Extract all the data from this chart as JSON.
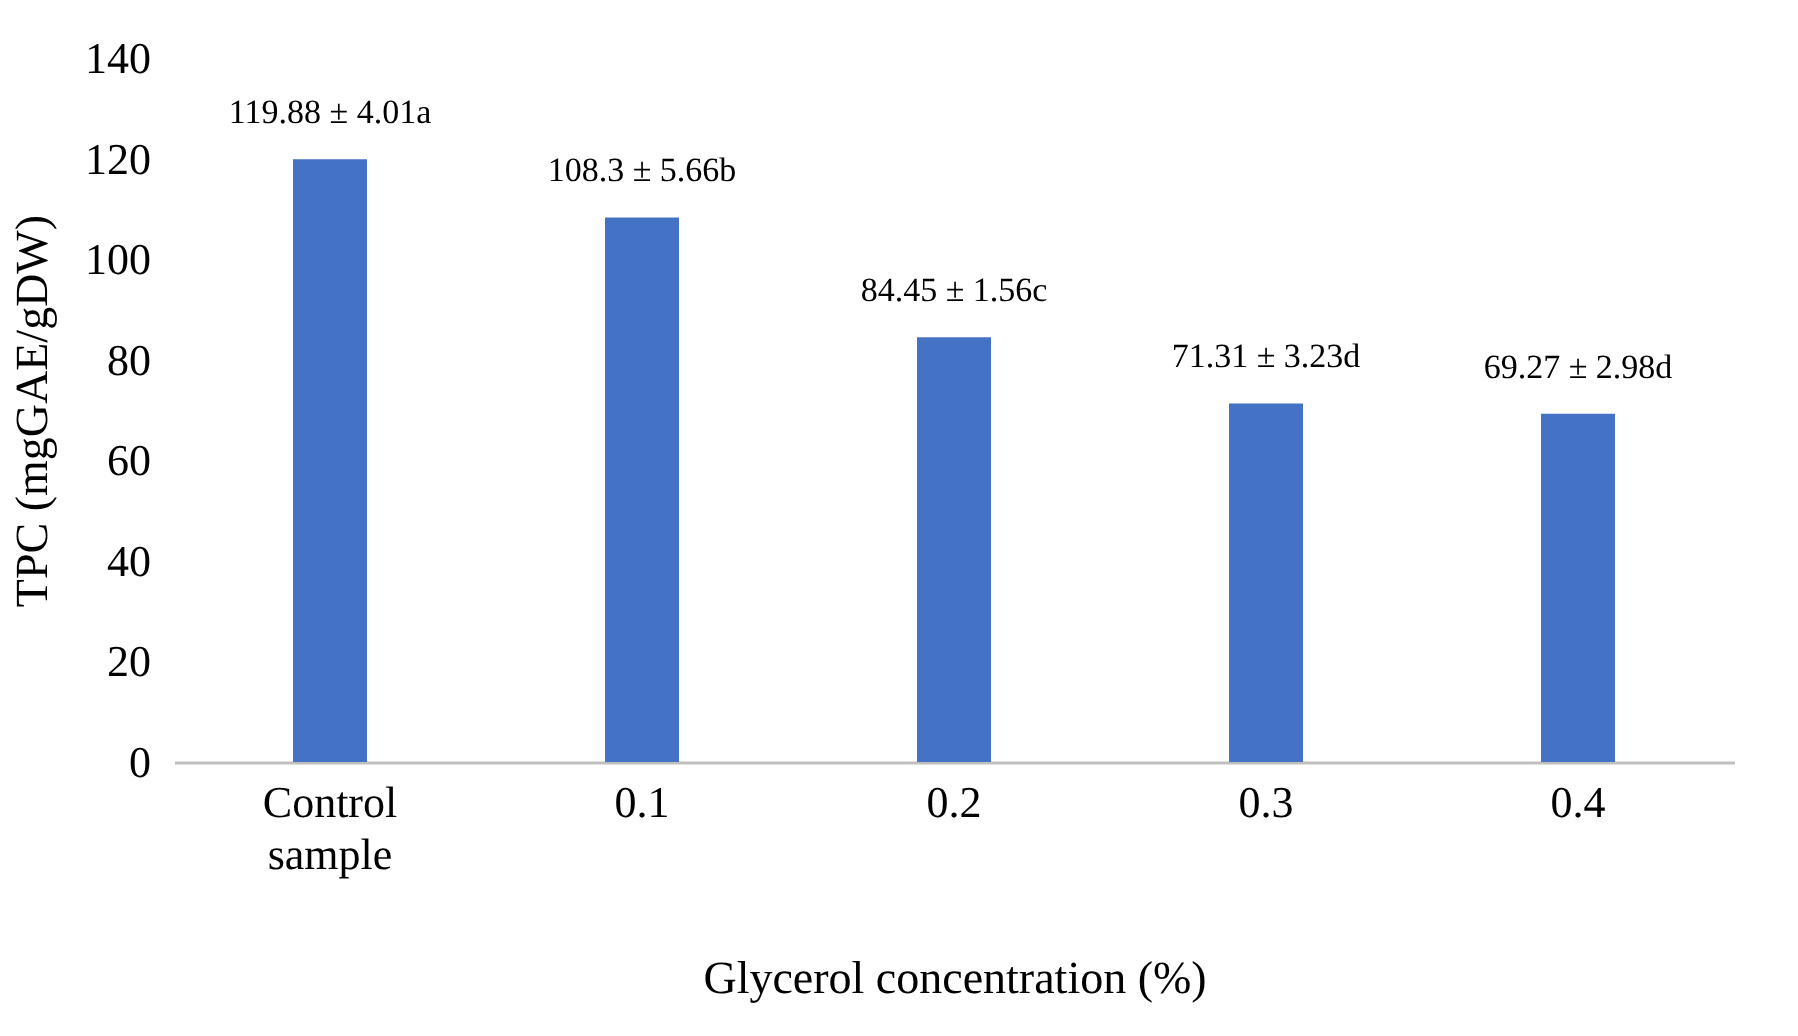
{
  "chart_data": {
    "type": "bar",
    "xlabel": "Glycerol concentration (%)",
    "ylabel": "TPC (mgGAE/gDW)",
    "categories": [
      "Control sample",
      "0.1",
      "0.2",
      "0.3",
      "0.4"
    ],
    "values": [
      119.88,
      108.3,
      84.45,
      71.31,
      69.27
    ],
    "value_labels": [
      "119.88 ± 4.01a",
      "108.3 ± 5.66b",
      "84.45 ± 1.56c",
      "71.31 ± 3.23d",
      "69.27 ± 2.98d"
    ],
    "color": "#4472c4",
    "ylim": [
      0,
      140
    ],
    "yticks": [
      0,
      20,
      40,
      60,
      80,
      100,
      120,
      140
    ],
    "grid": false
  }
}
